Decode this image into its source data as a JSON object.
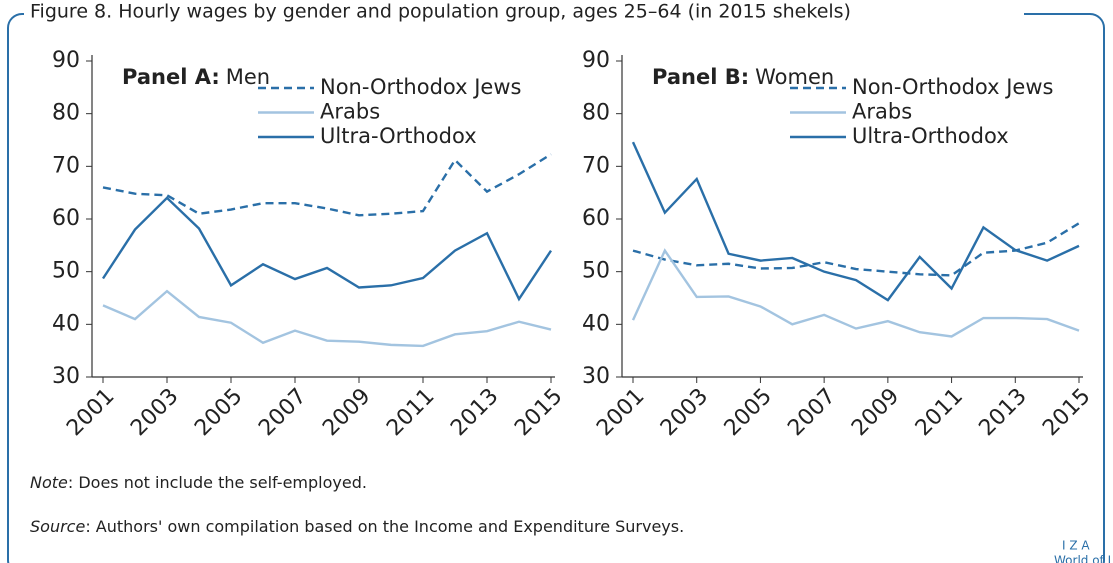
{
  "title": "Figure 8. Hourly wages by gender and population group, ages 25–64 (in 2015 shekels)",
  "chart_data": [
    {
      "type": "line",
      "panel": "Panel A:",
      "title": "Men",
      "x": [
        2001,
        2002,
        2003,
        2004,
        2005,
        2006,
        2007,
        2008,
        2009,
        2010,
        2011,
        2012,
        2013,
        2014,
        2015
      ],
      "xlim": [
        2001,
        2015
      ],
      "xticks": [
        2001,
        2003,
        2005,
        2007,
        2009,
        2011,
        2013,
        2015
      ],
      "ylim": [
        30,
        90
      ],
      "yticks": [
        30,
        40,
        50,
        60,
        70,
        80,
        90
      ],
      "series": [
        {
          "name": "Non-Orthodox Jews",
          "color": "#2a6fa8",
          "style": "dashed",
          "values": [
            66,
            64.8,
            64.5,
            61,
            61.8,
            63,
            63,
            62,
            60.7,
            61,
            61.5,
            71.2,
            65.2,
            68.5,
            72.3
          ]
        },
        {
          "name": "Arabs",
          "color": "#a3c4e0",
          "style": "solid",
          "values": [
            43.6,
            41,
            46.3,
            41.4,
            40.3,
            36.5,
            38.8,
            36.9,
            36.7,
            36.1,
            35.9,
            38.1,
            38.7,
            40.5,
            39
          ]
        },
        {
          "name": "Ultra-Orthodox",
          "color": "#2a6fa8",
          "style": "solid",
          "values": [
            48.7,
            58,
            64,
            58.2,
            47.4,
            51.4,
            48.6,
            50.7,
            47,
            47.4,
            48.8,
            54,
            57.3,
            44.8,
            54
          ]
        }
      ]
    },
    {
      "type": "line",
      "panel": "Panel B:",
      "title": "Women",
      "x": [
        2001,
        2002,
        2003,
        2004,
        2005,
        2006,
        2007,
        2008,
        2009,
        2010,
        2011,
        2012,
        2013,
        2014,
        2015
      ],
      "xlim": [
        2001,
        2015
      ],
      "xticks": [
        2001,
        2003,
        2005,
        2007,
        2009,
        2011,
        2013,
        2015
      ],
      "ylim": [
        30,
        90
      ],
      "yticks": [
        30,
        40,
        50,
        60,
        70,
        80,
        90
      ],
      "series": [
        {
          "name": "Non-Orthodox Jews",
          "color": "#2a6fa8",
          "style": "dashed",
          "values": [
            54,
            52.3,
            51.2,
            51.5,
            50.6,
            50.7,
            51.8,
            50.5,
            50,
            49.5,
            49.3,
            53.6,
            54,
            55.5,
            59.2
          ]
        },
        {
          "name": "Arabs",
          "color": "#a3c4e0",
          "style": "solid",
          "values": [
            40.8,
            54,
            45.2,
            45.3,
            43.4,
            40,
            41.8,
            39.2,
            40.6,
            38.5,
            37.7,
            41.2,
            41.2,
            41,
            38.8
          ]
        },
        {
          "name": "Ultra-Orthodox",
          "color": "#2a6fa8",
          "style": "solid",
          "values": [
            74.6,
            61.2,
            67.6,
            53.4,
            52.1,
            52.6,
            50,
            48.4,
            44.6,
            52.8,
            46.8,
            58.4,
            54.1,
            52.1,
            54.9
          ]
        }
      ]
    }
  ],
  "note": {
    "label": "Note",
    "text": ": Does not include the self-employed."
  },
  "source": {
    "label": "Source",
    "text": ": Authors' own compilation based on the Income and Expenditure Surveys."
  },
  "logo": {
    "name": "I Z A",
    "tagline": "World of Labor"
  }
}
